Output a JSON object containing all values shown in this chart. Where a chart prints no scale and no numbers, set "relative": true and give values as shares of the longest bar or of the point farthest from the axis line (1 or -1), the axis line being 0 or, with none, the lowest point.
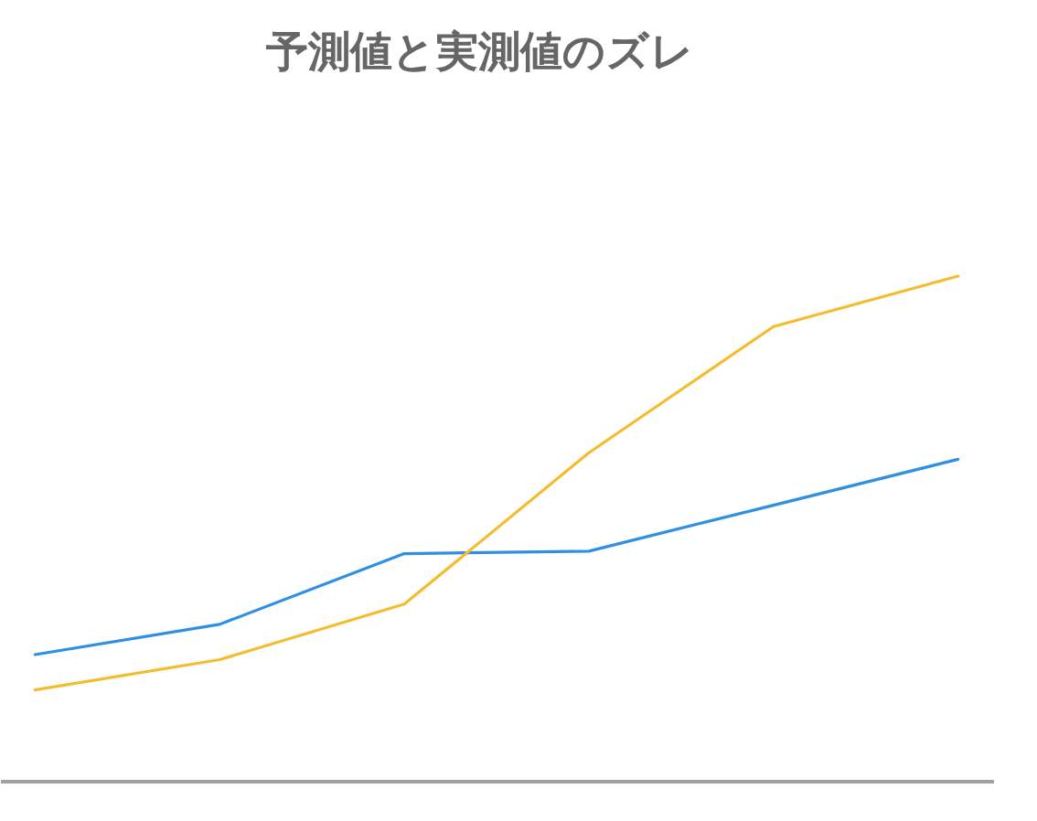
{
  "chart_data": {
    "type": "line",
    "title": "予測値と実測値のズレ",
    "categories": [
      null,
      null,
      null,
      null,
      null,
      null
    ],
    "relative": true,
    "line_style": "solid",
    "series": [
      {
        "color": "#2f8fe3",
        "values": [
          0.25,
          0.31,
          0.45,
          0.455,
          0.546,
          0.637
        ]
      },
      {
        "color": "#f3bd2f",
        "values": [
          0.18,
          0.24,
          0.35,
          0.65,
          0.9,
          1.0
        ]
      }
    ]
  }
}
